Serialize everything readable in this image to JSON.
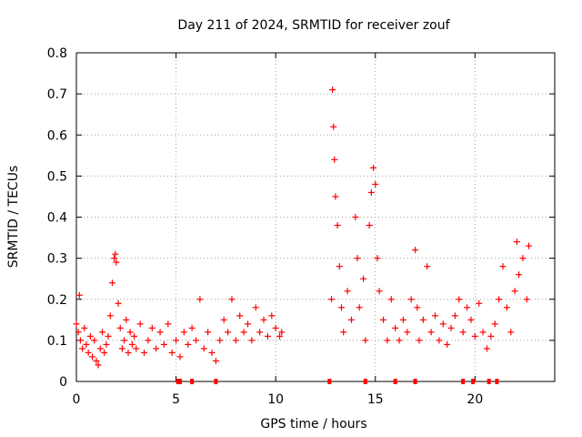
{
  "chart_data": {
    "type": "scatter",
    "title": "Day 211 of 2024, SRMTID for receiver zouf",
    "xlabel": "GPS time / hours",
    "ylabel": "SRMTID / TECUs",
    "xlim": [
      0,
      24
    ],
    "ylim": [
      0,
      0.8
    ],
    "xticks": [
      0,
      5,
      10,
      15,
      20
    ],
    "yticks": [
      0,
      0.1,
      0.2,
      0.3,
      0.4,
      0.5,
      0.6,
      0.7,
      0.8
    ],
    "xtick_labels": [
      "0",
      "5",
      "10",
      "15",
      "20"
    ],
    "ytick_labels": [
      "0",
      "0.1",
      "0.2",
      "0.3",
      "0.4",
      "0.5",
      "0.6",
      "0.7",
      "0.8"
    ],
    "grid": true,
    "marker": "+",
    "color": "#ff0000",
    "series": [
      {
        "name": "SRMTID",
        "points": [
          [
            0.0,
            0.14
          ],
          [
            0.1,
            0.12
          ],
          [
            0.15,
            0.21
          ],
          [
            0.2,
            0.1
          ],
          [
            0.3,
            0.08
          ],
          [
            0.4,
            0.13
          ],
          [
            0.5,
            0.09
          ],
          [
            0.6,
            0.07
          ],
          [
            0.7,
            0.11
          ],
          [
            0.8,
            0.06
          ],
          [
            0.9,
            0.1
          ],
          [
            1.0,
            0.05
          ],
          [
            1.1,
            0.04
          ],
          [
            1.2,
            0.08
          ],
          [
            1.3,
            0.12
          ],
          [
            1.4,
            0.07
          ],
          [
            1.5,
            0.09
          ],
          [
            1.6,
            0.11
          ],
          [
            1.7,
            0.16
          ],
          [
            1.8,
            0.24
          ],
          [
            1.9,
            0.3
          ],
          [
            1.95,
            0.31
          ],
          [
            2.0,
            0.29
          ],
          [
            2.1,
            0.19
          ],
          [
            2.2,
            0.13
          ],
          [
            2.3,
            0.08
          ],
          [
            2.4,
            0.1
          ],
          [
            2.5,
            0.15
          ],
          [
            2.6,
            0.07
          ],
          [
            2.7,
            0.12
          ],
          [
            2.8,
            0.09
          ],
          [
            2.9,
            0.11
          ],
          [
            3.0,
            0.08
          ],
          [
            3.2,
            0.14
          ],
          [
            3.4,
            0.07
          ],
          [
            3.6,
            0.1
          ],
          [
            3.8,
            0.13
          ],
          [
            4.0,
            0.08
          ],
          [
            4.2,
            0.12
          ],
          [
            4.4,
            0.09
          ],
          [
            4.6,
            0.14
          ],
          [
            4.8,
            0.07
          ],
          [
            5.0,
            0.1
          ],
          [
            5.2,
            0.06
          ],
          [
            5.4,
            0.12
          ],
          [
            5.6,
            0.09
          ],
          [
            5.8,
            0.13
          ],
          [
            6.0,
            0.1
          ],
          [
            6.2,
            0.2
          ],
          [
            6.4,
            0.08
          ],
          [
            6.6,
            0.12
          ],
          [
            6.8,
            0.07
          ],
          [
            7.0,
            0.05
          ],
          [
            7.2,
            0.1
          ],
          [
            7.4,
            0.15
          ],
          [
            7.6,
            0.12
          ],
          [
            7.8,
            0.2
          ],
          [
            8.0,
            0.1
          ],
          [
            8.2,
            0.16
          ],
          [
            8.4,
            0.12
          ],
          [
            8.6,
            0.14
          ],
          [
            8.8,
            0.1
          ],
          [
            9.0,
            0.18
          ],
          [
            9.2,
            0.12
          ],
          [
            9.4,
            0.15
          ],
          [
            9.6,
            0.11
          ],
          [
            9.8,
            0.16
          ],
          [
            10.0,
            0.13
          ],
          [
            10.2,
            0.11
          ],
          [
            10.3,
            0.12
          ],
          [
            12.8,
            0.2
          ],
          [
            12.85,
            0.71
          ],
          [
            12.9,
            0.62
          ],
          [
            12.95,
            0.54
          ],
          [
            13.0,
            0.45
          ],
          [
            13.1,
            0.38
          ],
          [
            13.2,
            0.28
          ],
          [
            13.3,
            0.18
          ],
          [
            13.4,
            0.12
          ],
          [
            13.6,
            0.22
          ],
          [
            13.8,
            0.15
          ],
          [
            14.0,
            0.4
          ],
          [
            14.1,
            0.3
          ],
          [
            14.2,
            0.18
          ],
          [
            14.4,
            0.25
          ],
          [
            14.5,
            0.1
          ],
          [
            14.7,
            0.38
          ],
          [
            14.8,
            0.46
          ],
          [
            14.9,
            0.52
          ],
          [
            15.0,
            0.48
          ],
          [
            15.1,
            0.3
          ],
          [
            15.2,
            0.22
          ],
          [
            15.4,
            0.15
          ],
          [
            15.6,
            0.1
          ],
          [
            15.8,
            0.2
          ],
          [
            16.0,
            0.13
          ],
          [
            16.2,
            0.1
          ],
          [
            16.4,
            0.15
          ],
          [
            16.6,
            0.12
          ],
          [
            16.8,
            0.2
          ],
          [
            17.0,
            0.32
          ],
          [
            17.1,
            0.18
          ],
          [
            17.2,
            0.1
          ],
          [
            17.4,
            0.15
          ],
          [
            17.6,
            0.28
          ],
          [
            17.8,
            0.12
          ],
          [
            18.0,
            0.16
          ],
          [
            18.2,
            0.1
          ],
          [
            18.4,
            0.14
          ],
          [
            18.6,
            0.09
          ],
          [
            18.8,
            0.13
          ],
          [
            19.0,
            0.16
          ],
          [
            19.2,
            0.2
          ],
          [
            19.4,
            0.12
          ],
          [
            19.6,
            0.18
          ],
          [
            19.8,
            0.15
          ],
          [
            20.0,
            0.11
          ],
          [
            20.2,
            0.19
          ],
          [
            20.4,
            0.12
          ],
          [
            20.6,
            0.08
          ],
          [
            20.8,
            0.11
          ],
          [
            21.0,
            0.14
          ],
          [
            21.2,
            0.2
          ],
          [
            21.4,
            0.28
          ],
          [
            21.6,
            0.18
          ],
          [
            21.8,
            0.12
          ],
          [
            22.0,
            0.22
          ],
          [
            22.1,
            0.34
          ],
          [
            22.2,
            0.26
          ],
          [
            22.4,
            0.3
          ],
          [
            22.6,
            0.2
          ],
          [
            22.7,
            0.33
          ]
        ]
      }
    ],
    "x_axis_markers": [
      5.1,
      5.2,
      5.8,
      7.0,
      12.7,
      14.5,
      16.0,
      17.0,
      19.4,
      19.9,
      20.7,
      21.1
    ]
  }
}
